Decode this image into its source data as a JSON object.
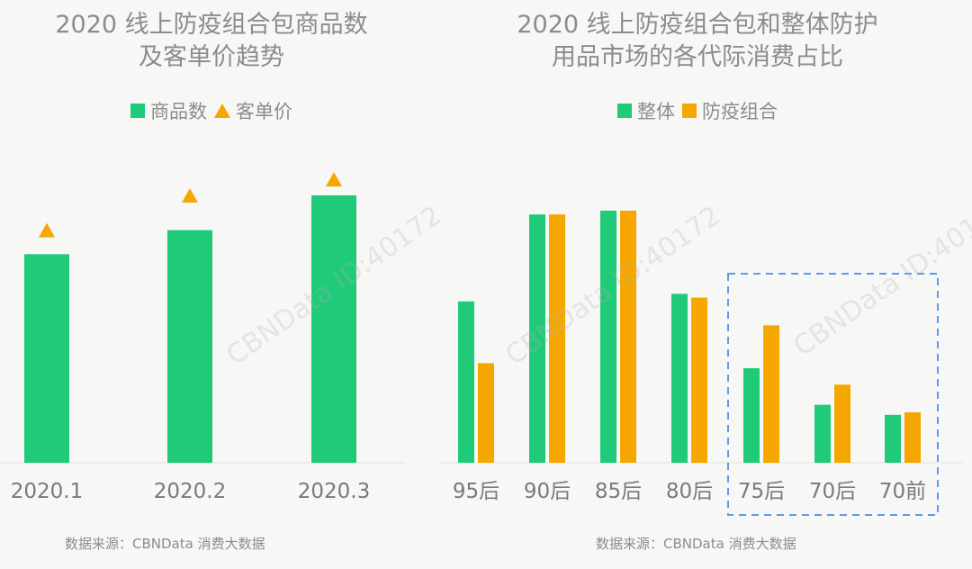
{
  "left": {
    "title_line1": "2020 线上防疫组合包商品数",
    "title_line2": "及客单价趋势",
    "legend": [
      {
        "label": "商品数",
        "shape": "square",
        "color": "#1fca79"
      },
      {
        "label": "客单价",
        "shape": "triangle",
        "color": "#f5a700"
      }
    ],
    "source": "数据来源：CBNData 消费大数据"
  },
  "right": {
    "title_line1": "2020 线上防疫组合包和整体防护",
    "title_line2": "用品市场的各代际消费占比",
    "legend": [
      {
        "label": "整体",
        "shape": "square",
        "color": "#1fca79"
      },
      {
        "label": "防疫组合",
        "shape": "square",
        "color": "#f5a700"
      }
    ],
    "source": "数据来源：CBNData 消费大数据"
  },
  "watermark_text": "CBNData ID:40172",
  "colors": {
    "green": "#1fca79",
    "orange": "#f5a700",
    "highlight": "#5b9bf0"
  },
  "chart_data": [
    {
      "type": "bar",
      "title": "2020 线上防疫组合包商品数及客单价趋势",
      "categories": [
        "2020.1",
        "2020.2",
        "2020.3"
      ],
      "series": [
        {
          "name": "商品数",
          "type": "bar",
          "values": [
            0.78,
            0.87,
            1.0
          ]
        },
        {
          "name": "客单价",
          "type": "scatter",
          "marker": "triangle",
          "values": [
            0.87,
            1.0,
            1.06
          ]
        }
      ],
      "ylim": [
        0,
        1.1
      ],
      "grid": false,
      "legend_position": "top-center"
    },
    {
      "type": "bar",
      "title": "2020 线上防疫组合包和整体防护用品市场的各代际消费占比",
      "categories": [
        "95后",
        "90后",
        "85后",
        "80后",
        "75后",
        "70后",
        "70前"
      ],
      "series": [
        {
          "name": "整体",
          "values": [
            0.64,
            0.985,
            1.0,
            0.67,
            0.375,
            0.23,
            0.19
          ]
        },
        {
          "name": "防疫组合",
          "values": [
            0.395,
            0.985,
            1.0,
            0.655,
            0.545,
            0.31,
            0.2
          ]
        }
      ],
      "ylim": [
        0,
        1.1
      ],
      "grid": false,
      "legend_position": "top-center",
      "highlight_categories": [
        "75后",
        "70后",
        "70前"
      ]
    }
  ]
}
